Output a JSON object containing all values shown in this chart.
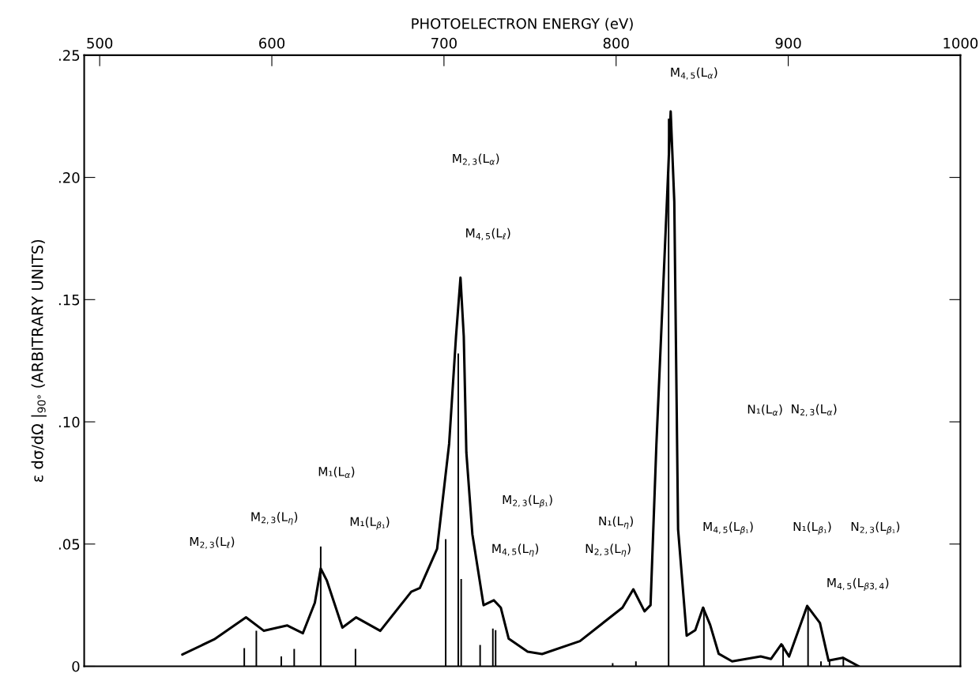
{
  "chart_data": {
    "type": "line",
    "xlabel": "PHOTOELECTRON ENERGY (eV)",
    "ylabel": "ε dσ/dΩ |$_{90°}$ (ARBITRARY UNITS)",
    "xlim": [
      491,
      1000
    ],
    "xticks": [
      500,
      600,
      700,
      800,
      900,
      1000
    ],
    "ylim": [
      0,
      0.25
    ],
    "yticks": [
      {
        "value": 0,
        "label": "0"
      },
      {
        "value": 0.05,
        "label": ".05"
      },
      {
        "value": 0.1,
        "label": ".10"
      },
      {
        "value": 0.15,
        "label": ".15"
      },
      {
        "value": 0.2,
        "label": ".20"
      },
      {
        "value": 0.25,
        "label": ".25"
      }
    ],
    "grid": false,
    "legend": false,
    "series": [
      {
        "color": "#000000",
        "x": [
          548,
          566.5,
          585,
          595.4,
          609,
          618,
          625,
          628.4,
          632,
          641,
          649,
          663,
          681,
          686,
          696,
          703,
          707,
          709.6,
          711.5,
          713,
          716.5,
          723,
          729,
          733,
          737.6,
          748.6,
          757,
          779,
          803.7,
          810,
          816.5,
          820,
          823.4,
          829.5,
          831.7,
          833.8,
          836,
          841,
          846,
          850.5,
          854.6,
          859.6,
          867.4,
          884,
          890,
          896,
          900.5,
          911,
          918.4,
          923.4,
          931.7,
          941
        ],
        "values": [
          0.0048,
          0.011,
          0.02,
          0.0145,
          0.0167,
          0.0135,
          0.026,
          0.04,
          0.035,
          0.0158,
          0.02,
          0.0145,
          0.0305,
          0.032,
          0.048,
          0.091,
          0.135,
          0.159,
          0.135,
          0.0875,
          0.054,
          0.025,
          0.027,
          0.024,
          0.0113,
          0.006,
          0.005,
          0.0103,
          0.024,
          0.0315,
          0.0225,
          0.025,
          0.0907,
          0.19,
          0.227,
          0.19,
          0.056,
          0.0125,
          0.0148,
          0.024,
          0.017,
          0.0051,
          0.002,
          0.004,
          0.003,
          0.009,
          0.004,
          0.0247,
          0.0177,
          0.0023,
          0.0035,
          0
        ]
      },
      {
        "type": "bar",
        "color": "#000000",
        "x": [
          584,
          591,
          605.5,
          613,
          628.4,
          648.6,
          701,
          708.3,
          710,
          721,
          728.4,
          730,
          798,
          811.5,
          830.5,
          851,
          897,
          911.5,
          919,
          924,
          932
        ],
        "values": [
          0.0074,
          0.0145,
          0.004,
          0.0071,
          0.049,
          0.0071,
          0.052,
          0.128,
          0.0357,
          0.0087,
          0.0154,
          0.0148,
          0.0013,
          0.002,
          0.224,
          0.024,
          0.0087,
          0.024,
          0.002,
          0.0023,
          0.0035
        ]
      }
    ],
    "annotations": [
      "M$_{2,3}$(L$_{ℓ}$)",
      "M$_{2,3}$(L$_{η}$)",
      "M₁(L$_{α}$)",
      "M₁(L$_{β₁}$)",
      "M$_{2,3}$(L$_{α}$)",
      "M$_{4,5}$(L$_{ℓ}$)",
      "M$_{2,3}$(L$_{β₁}$)",
      "M$_{4,5}$(L$_{η}$)",
      "N₁(L$_{η}$)",
      "N$_{2,3}$(L$_{η}$)",
      "M$_{4,5}$(L$_{α}$)",
      "M$_{4,5}$(L$_{β₁}$)",
      "N₁(L$_{α}$)",
      "N$_{2,3}$(L$_{α}$)",
      "N₁(L$_{β₁}$)",
      "N$_{2,3}$(L$_{β₁}$)",
      "M$_{4,5}$(L$_{β3,4}$)"
    ]
  }
}
